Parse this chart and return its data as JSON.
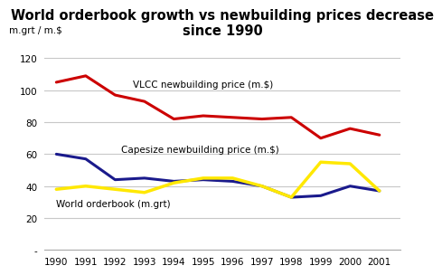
{
  "title": "World orderbook growth vs newbuilding prices decrease\nsince 1990",
  "ylabel": "m.grt / m.$",
  "years": [
    1990,
    1991,
    1992,
    1993,
    1994,
    1995,
    1996,
    1997,
    1998,
    1999,
    2000,
    2001
  ],
  "vlcc": [
    105,
    109,
    97,
    93,
    82,
    84,
    83,
    82,
    83,
    70,
    76,
    72
  ],
  "capesize": [
    60,
    57,
    44,
    45,
    43,
    44,
    43,
    40,
    33,
    34,
    40,
    37
  ],
  "orderbook": [
    38,
    40,
    38,
    36,
    42,
    45,
    45,
    40,
    33,
    55,
    54,
    37
  ],
  "vlcc_color": "#cc0000",
  "capesize_color": "#1a1a8c",
  "orderbook_color": "#FFE800",
  "vlcc_label": "VLCC newbuilding price (m.$)",
  "capesize_label": "Capesize newbuilding price (m.$)",
  "orderbook_label": "World orderbook (m.grt)",
  "ylim": [
    0,
    130
  ],
  "yticks": [
    0,
    20,
    40,
    60,
    80,
    100,
    120
  ],
  "background_color": "#ffffff",
  "grid_color": "#c8c8c8",
  "title_fontsize": 10.5,
  "annot_fontsize": 7.5,
  "tick_fontsize": 7.5,
  "ylabel_fontsize": 7.5
}
